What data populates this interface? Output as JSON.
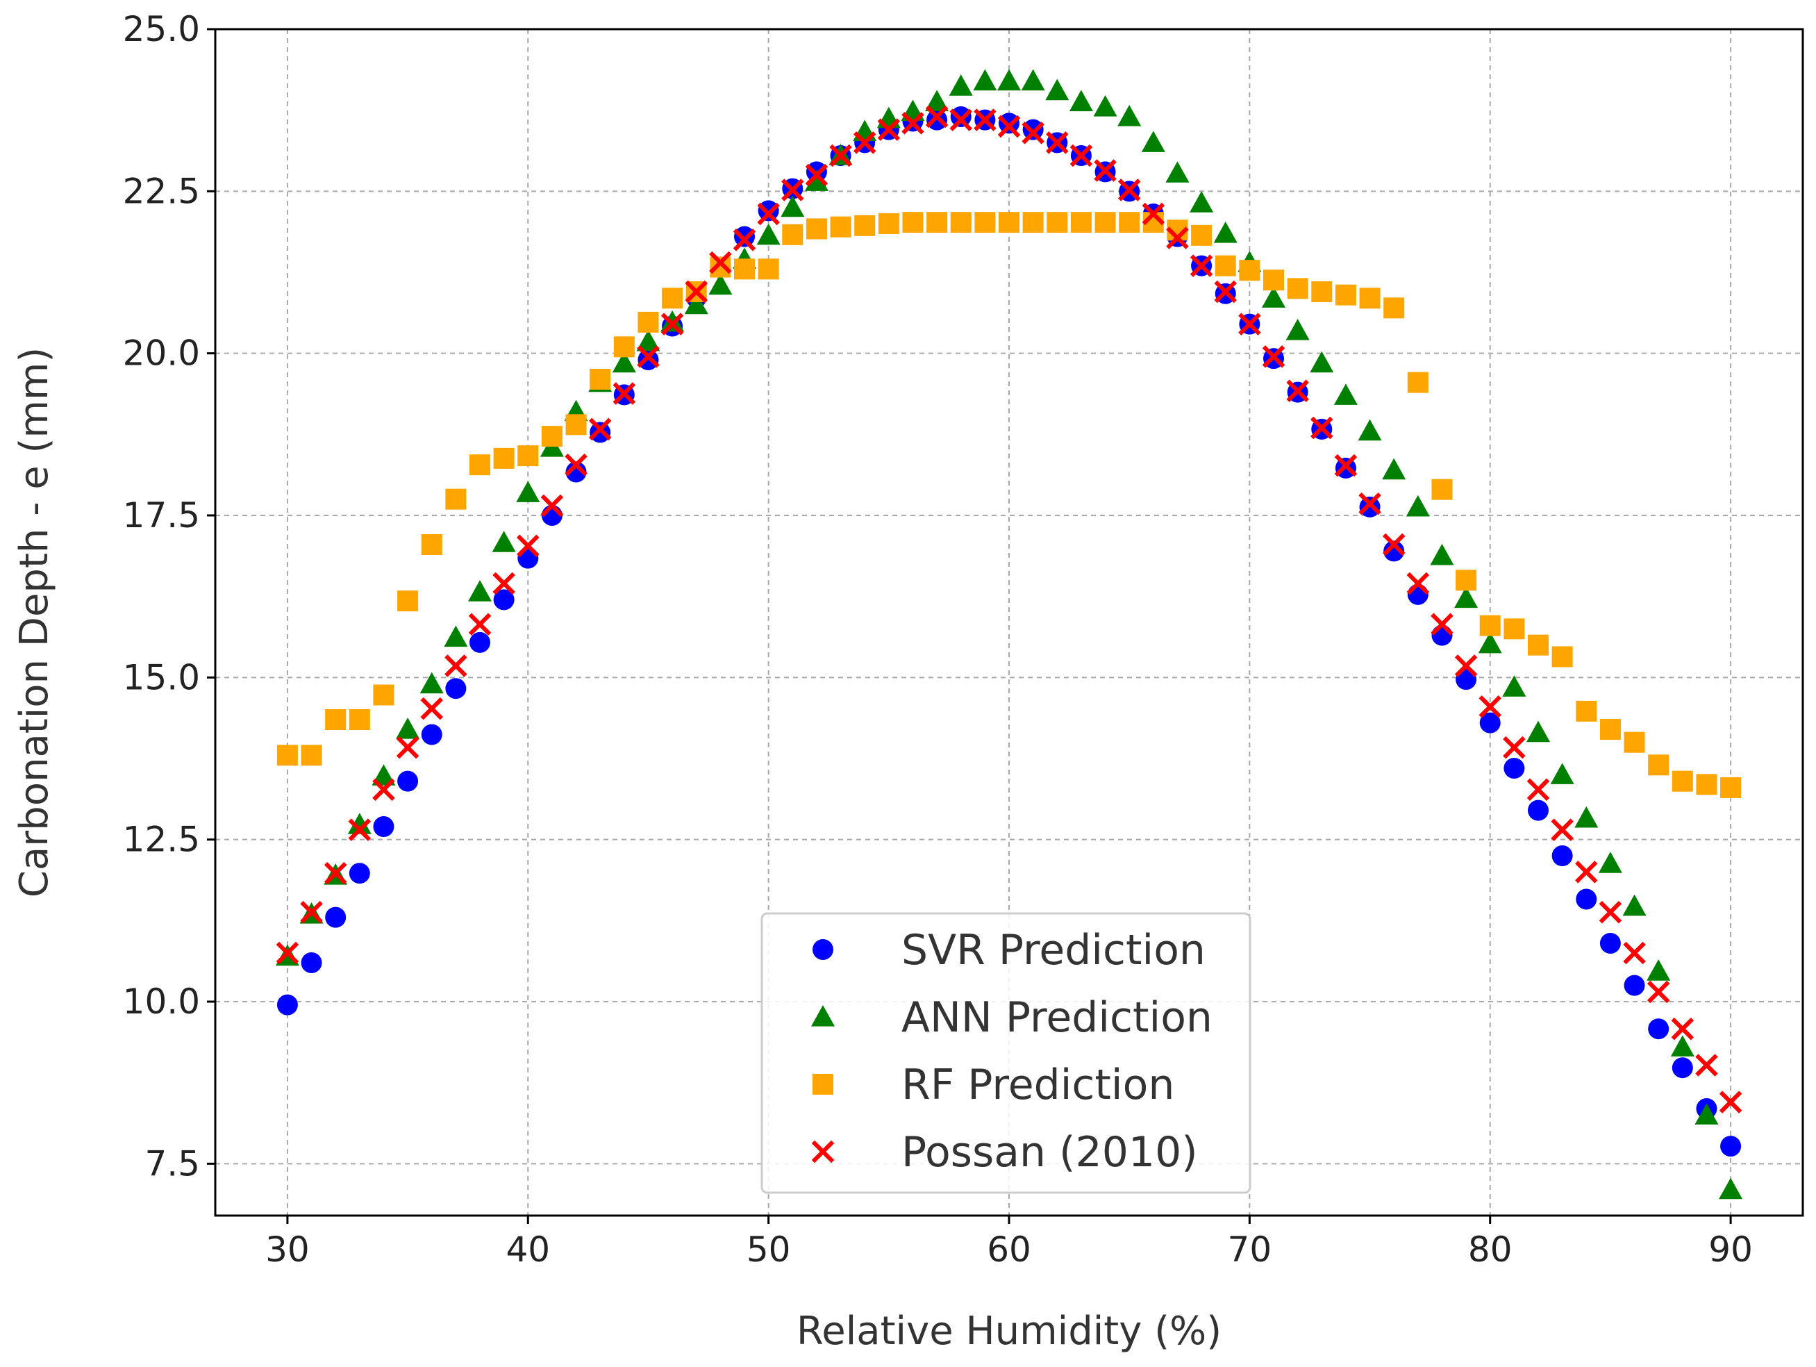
{
  "chart_data": {
    "type": "scatter",
    "title": "",
    "xlabel": "Relative Humidity (%)",
    "ylabel": "Carbonation Depth - e (mm)",
    "xlim": [
      27,
      93
    ],
    "ylim": [
      6.7,
      25
    ],
    "xticks": [
      30,
      40,
      50,
      60,
      70,
      80,
      90
    ],
    "xtick_labels": [
      "30",
      "40",
      "50",
      "60",
      "70",
      "80",
      "90"
    ],
    "yticks": [
      7.5,
      10,
      12.5,
      15,
      17.5,
      20,
      22.5,
      25
    ],
    "ytick_labels": [
      "7.5",
      "10.0",
      "12.5",
      "15.0",
      "17.5",
      "20.0",
      "22.5",
      "25.0"
    ],
    "grid": true,
    "legend_position": "bottom-center",
    "x": [
      30,
      31,
      32,
      33,
      34,
      35,
      36,
      37,
      38,
      39,
      40,
      41,
      42,
      43,
      44,
      45,
      46,
      47,
      48,
      49,
      50,
      51,
      52,
      53,
      54,
      55,
      56,
      57,
      58,
      59,
      60,
      61,
      62,
      63,
      64,
      65,
      66,
      67,
      68,
      69,
      70,
      71,
      72,
      73,
      74,
      75,
      76,
      77,
      78,
      79,
      80,
      81,
      82,
      83,
      84,
      85,
      86,
      87,
      88,
      89,
      90
    ],
    "series": [
      {
        "name": "SVR Prediction",
        "marker": "circle",
        "color": "#0000ff",
        "values": [
          9.95,
          10.6,
          11.3,
          11.98,
          12.7,
          13.4,
          14.12,
          14.83,
          15.54,
          16.2,
          16.84,
          17.5,
          18.17,
          18.78,
          19.36,
          19.9,
          20.42,
          20.86,
          21.33,
          21.8,
          22.2,
          22.54,
          22.8,
          23.05,
          23.25,
          23.45,
          23.58,
          23.6,
          23.65,
          23.6,
          23.55,
          23.45,
          23.25,
          23.05,
          22.8,
          22.5,
          22.15,
          21.8,
          21.35,
          20.92,
          20.45,
          19.92,
          19.4,
          18.83,
          18.23,
          17.63,
          16.95,
          16.28,
          15.65,
          14.97,
          14.3,
          13.6,
          12.95,
          12.25,
          11.58,
          10.9,
          10.25,
          9.58,
          8.98,
          8.35,
          7.77
        ]
      },
      {
        "name": "ANN Prediction",
        "marker": "triangle",
        "color": "#008000",
        "values": [
          10.7,
          11.35,
          11.95,
          12.73,
          13.48,
          14.2,
          14.9,
          15.62,
          16.32,
          17.08,
          17.85,
          18.55,
          19.1,
          19.55,
          19.85,
          20.18,
          20.48,
          20.75,
          21.05,
          21.45,
          21.82,
          22.25,
          22.65,
          23.05,
          23.42,
          23.62,
          23.73,
          23.88,
          24.12,
          24.2,
          24.2,
          24.2,
          24.05,
          23.88,
          23.8,
          23.65,
          23.25,
          22.78,
          22.32,
          21.85,
          21.4,
          20.85,
          20.35,
          19.85,
          19.35,
          18.8,
          18.2,
          17.63,
          16.88,
          16.22,
          15.52,
          14.85,
          14.15,
          13.5,
          12.83,
          12.13,
          11.47,
          10.47,
          9.3,
          8.25,
          7.1
        ]
      },
      {
        "name": "RF Prediction",
        "marker": "square",
        "color": "#ffa500",
        "values": [
          13.8,
          13.8,
          14.35,
          14.35,
          14.73,
          16.18,
          17.05,
          17.75,
          18.28,
          18.38,
          18.42,
          18.72,
          18.9,
          19.6,
          20.1,
          20.48,
          20.85,
          20.95,
          21.33,
          21.3,
          21.3,
          21.83,
          21.92,
          21.95,
          21.97,
          22.0,
          22.02,
          22.02,
          22.02,
          22.02,
          22.02,
          22.02,
          22.02,
          22.02,
          22.02,
          22.02,
          22.02,
          21.9,
          21.82,
          21.35,
          21.28,
          21.13,
          21.0,
          20.95,
          20.9,
          20.85,
          20.7,
          19.55,
          17.9,
          16.5,
          15.8,
          15.75,
          15.5,
          15.32,
          14.48,
          14.2,
          14.0,
          13.65,
          13.4,
          13.35,
          13.3
        ]
      },
      {
        "name": "Possan (2010)",
        "marker": "x",
        "color": "#ff0000",
        "values": [
          10.75,
          11.38,
          11.98,
          12.65,
          13.27,
          13.92,
          14.52,
          15.18,
          15.82,
          16.45,
          17.03,
          17.65,
          18.28,
          18.83,
          19.38,
          19.95,
          20.45,
          20.95,
          21.4,
          21.75,
          22.15,
          22.52,
          22.75,
          23.05,
          23.25,
          23.45,
          23.55,
          23.65,
          23.6,
          23.6,
          23.5,
          23.4,
          23.25,
          23.05,
          22.82,
          22.52,
          22.15,
          21.78,
          21.35,
          20.95,
          20.45,
          19.95,
          19.42,
          18.85,
          18.27,
          17.68,
          17.05,
          16.45,
          15.82,
          15.18,
          14.55,
          13.92,
          13.27,
          12.65,
          12.0,
          11.38,
          10.75,
          10.15,
          9.58,
          9.02,
          8.45
        ]
      }
    ]
  }
}
